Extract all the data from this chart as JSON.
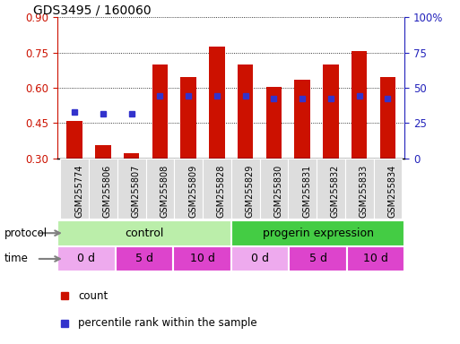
{
  "title": "GDS3495 / 160060",
  "samples": [
    "GSM255774",
    "GSM255806",
    "GSM255807",
    "GSM255808",
    "GSM255809",
    "GSM255828",
    "GSM255829",
    "GSM255830",
    "GSM255831",
    "GSM255832",
    "GSM255833",
    "GSM255834"
  ],
  "bar_values": [
    0.46,
    0.355,
    0.32,
    0.7,
    0.645,
    0.775,
    0.7,
    0.605,
    0.635,
    0.7,
    0.755,
    0.645
  ],
  "percentile_values": [
    0.495,
    0.49,
    0.49,
    0.565,
    0.565,
    0.565,
    0.565,
    0.555,
    0.555,
    0.555,
    0.565,
    0.555
  ],
  "ylim_left": [
    0.3,
    0.9
  ],
  "ylim_right": [
    0,
    100
  ],
  "yticks_left": [
    0.3,
    0.45,
    0.6,
    0.75,
    0.9
  ],
  "yticks_right": [
    0,
    25,
    50,
    75,
    100
  ],
  "bar_color": "#cc1100",
  "dot_color": "#3333cc",
  "protocol_ctrl_color": "#bbeeaa",
  "protocol_prog_color": "#44cc44",
  "time_color_0d": "#eeaaee",
  "time_color_5d": "#dd44cc",
  "time_color_10d": "#dd44cc",
  "time_groups": [
    {
      "label": "0 d",
      "start": 0,
      "end": 2,
      "is_0d": true
    },
    {
      "label": "5 d",
      "start": 2,
      "end": 4,
      "is_0d": false
    },
    {
      "label": "10 d",
      "start": 4,
      "end": 6,
      "is_0d": false
    },
    {
      "label": "0 d",
      "start": 6,
      "end": 8,
      "is_0d": true
    },
    {
      "label": "5 d",
      "start": 8,
      "end": 10,
      "is_0d": false
    },
    {
      "label": "10 d",
      "start": 10,
      "end": 12,
      "is_0d": false
    }
  ],
  "ax_label_color_left": "#cc1100",
  "ax_label_color_right": "#2222bb",
  "legend_items": [
    {
      "label": "count",
      "color": "#cc1100"
    },
    {
      "label": "percentile rank within the sample",
      "color": "#3333cc"
    }
  ]
}
